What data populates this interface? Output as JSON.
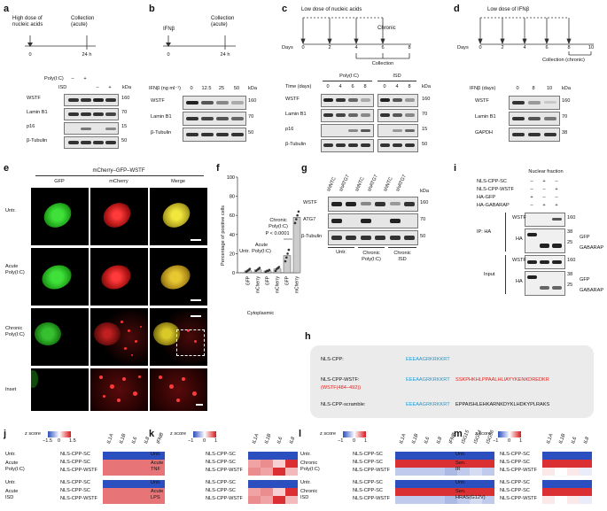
{
  "panels": {
    "a": {
      "label": "a",
      "timeline": {
        "start_label": "High dose of\nnucleic acids",
        "end_label": "Collection\n(acute)",
        "t0": "0",
        "t1": "24 h"
      },
      "conditions": [
        {
          "name": "Poly(I:C)",
          "values": [
            "–",
            "+",
            "",
            ""
          ]
        },
        {
          "name": "ISD",
          "values": [
            "",
            "",
            "–",
            "+"
          ]
        }
      ],
      "kda_header": "kDa",
      "rows": [
        {
          "name": "WSTF",
          "kda": "160"
        },
        {
          "name": "Lamin B1",
          "kda": "70"
        },
        {
          "name": "p16",
          "kda": "15"
        },
        {
          "name": "β-Tubulin",
          "kda": "50"
        }
      ]
    },
    "b": {
      "label": "b",
      "timeline": {
        "start_label": "IFNβ",
        "end_label": "Collection\n(acute)",
        "t0": "0",
        "t1": "24 h"
      },
      "dose_label": "IFNβ (ng ml⁻¹)",
      "doses": [
        "0",
        "12.5",
        "25",
        "50"
      ],
      "kda_header": "kDa",
      "rows": [
        {
          "name": "WSTF",
          "kda": "160"
        },
        {
          "name": "Lamin B1",
          "kda": "70"
        },
        {
          "name": "β-Tubulin",
          "kda": "50"
        }
      ]
    },
    "c": {
      "label": "c",
      "title": "Low dose of nucleic acids",
      "chronic": "Chronic",
      "days_label": "Days",
      "days": [
        "0",
        "2",
        "4",
        "6",
        "8"
      ],
      "collection": "Collection",
      "groups": [
        "Poly(I:C)",
        "ISD"
      ],
      "time_label": "Time (days)",
      "times": [
        "0",
        "4",
        "6",
        "8",
        "0",
        "4",
        "8"
      ],
      "kda_header": "kDa",
      "rows": [
        {
          "name": "WSTF",
          "kda": "160"
        },
        {
          "name": "Lamin B1",
          "kda": "70"
        },
        {
          "name": "p16",
          "kda": "15"
        },
        {
          "name": "β-Tubulin",
          "kda": "50"
        }
      ]
    },
    "d": {
      "label": "d",
      "title": "Low dose of IFNβ",
      "days_label": "Days",
      "days": [
        "0",
        "2",
        "4",
        "6",
        "8",
        "10"
      ],
      "collection": "Collection (chronic)",
      "ifn_days_label": "IFNβ (days)",
      "ifn_days": [
        "0",
        "8",
        "10"
      ],
      "kda_header": "kDa",
      "rows": [
        {
          "name": "WSTF",
          "kda": "160"
        },
        {
          "name": "Lamin B1",
          "kda": "70"
        },
        {
          "name": "GAPDH",
          "kda": "38"
        }
      ]
    },
    "e": {
      "label": "e",
      "title": "mCherry–GFP–WSTF",
      "columns": [
        "GFP",
        "mCherry",
        "Merge"
      ],
      "rows": [
        "Untr.",
        "Acute\nPoly(I:C)",
        "Chronic\nPoly(I:C)",
        "Inset"
      ]
    },
    "f": {
      "label": "f",
      "ylabel": "Percentage of positive cells",
      "yticks": [
        "0",
        "20",
        "40",
        "60",
        "80",
        "100"
      ],
      "groups": [
        "Untr.",
        "Acute\nPoly(I:C)",
        "Chronic\nPoly(I:C)"
      ],
      "bars": [
        "GFP",
        "mCherry",
        "GFP",
        "mCherry",
        "GFP",
        "mCherry"
      ],
      "xlabel": "Cytoplasmic",
      "pvalue": "P < 0.0001"
    },
    "g": {
      "label": "g",
      "lanes": [
        "shNTC",
        "shATG7",
        "shNTC",
        "shATG7",
        "shNTC",
        "shATG7"
      ],
      "groups": [
        "Untr.",
        "Chronic\nPoly(I:C)",
        "Chronic\nISD"
      ],
      "kda_header": "kDa",
      "rows": [
        {
          "name": "WSTF",
          "kda": "160"
        },
        {
          "name": "ATG7",
          "kda": "70"
        },
        {
          "name": "β-Tubulin",
          "kda": "50"
        }
      ]
    },
    "h": {
      "label": "h",
      "lines": [
        {
          "name": "NLS-CPP:",
          "seq_blue": "EEEAAGRKRKKRT",
          "seq_red": "",
          "seq_black": ""
        },
        {
          "name": "NLS-CPP-WSTF:",
          "sub": "(WSTF(484–492))",
          "seq_blue": "EEEAAGRKRKKRT",
          "seq_red": "SSKPHKHLPPAALHLIAYYKENKDREDKR",
          "seq_black": ""
        },
        {
          "name": "NLS-CPP-scramble:",
          "seq_blue": "EEEAAGRKRKKRT",
          "seq_red": "",
          "seq_black": "EPPAISHLEHKARNKDYKLHDKYPLRAKS"
        }
      ]
    },
    "i": {
      "label": "i",
      "title": "Nuclear fraction",
      "conditions": [
        {
          "name": "NLS-CPP-SC",
          "values": [
            "–",
            "+",
            "–"
          ]
        },
        {
          "name": "NLS-CPP-WSTF",
          "values": [
            "–",
            "–",
            "+"
          ]
        },
        {
          "name": "HA-GFP",
          "values": [
            "+",
            "–",
            "–"
          ]
        },
        {
          "name": "HA-GABARAP",
          "values": [
            "–",
            "+",
            "+"
          ]
        }
      ],
      "ip_label": "IP: HA",
      "input_label": "Input",
      "ip_rows": [
        {
          "name": "WSTF",
          "kda": [
            "160"
          ]
        },
        {
          "name": "HA",
          "kda": [
            "38",
            "25"
          ],
          "right": [
            "GFP",
            "GABARAP"
          ]
        }
      ],
      "input_rows": [
        {
          "name": "WSTF",
          "kda": [
            "160"
          ]
        },
        {
          "name": "HA",
          "kda": [
            "38",
            "25"
          ],
          "right": [
            "GFP",
            "GABARAP"
          ]
        }
      ]
    }
  },
  "heatmaps": {
    "j": {
      "label": "j",
      "zscore": "z score",
      "scale": [
        "−1.5",
        "0",
        "1.5"
      ],
      "genes": [
        "IL1A",
        "IL1B",
        "IL6",
        "IL8",
        "IFNB"
      ],
      "blocks": [
        {
          "group": "Acute\nPoly(I:C)",
          "rows": [
            "NLS-CPP-SC",
            "NLS-CPP-SC",
            "NLS-CPP-WSTF"
          ],
          "untr": "Untr."
        },
        {
          "group": "Acute\nISD",
          "rows": [
            "NLS-CPP-SC",
            "NLS-CPP-SC",
            "NLS-CPP-WSTF"
          ],
          "untr": "Untr."
        }
      ]
    },
    "k": {
      "label": "k",
      "zscore": "z score",
      "scale": [
        "−1",
        "0",
        "1"
      ],
      "genes": [
        "IL1A",
        "IL1B",
        "IL6",
        "IL8"
      ],
      "blocks": [
        {
          "group": "Acute\nTNF",
          "rows": [
            "NLS-CPP-SC",
            "NLS-CPP-SC",
            "NLS-CPP-WSTF"
          ],
          "untr": "Untr."
        },
        {
          "group": "Acute\nLPS",
          "rows": [
            "NLS-CPP-SC",
            "NLS-CPP-SC",
            "NLS-CPP-WSTF"
          ],
          "untr": "Untr."
        }
      ]
    },
    "l": {
      "label": "l",
      "zscore": "z score",
      "scale": [
        "−1",
        "0",
        "1"
      ],
      "genes": [
        "IL1A",
        "IL1B",
        "IL6",
        "IL8",
        "IFNB",
        "ISG15",
        "ISG54",
        "ISG56"
      ],
      "blocks": [
        {
          "group": "Chronic\nPoly(I:C)",
          "rows": [
            "NLS-CPP-SC",
            "NLS-CPP-SC",
            "NLS-CPP-WSTF"
          ],
          "untr": "Untr."
        },
        {
          "group": "Chronic\nISD",
          "rows": [
            "NLS-CPP-SC",
            "NLS-CPP-SC",
            "NLS-CPP-WSTF"
          ],
          "untr": "Untr."
        }
      ]
    },
    "m": {
      "label": "m",
      "zscore": "z score",
      "scale": [
        "−1",
        "0",
        "1"
      ],
      "genes": [
        "IL1A",
        "IL1B",
        "IL6",
        "IL8"
      ],
      "blocks": [
        {
          "group": "Sen.\nIR",
          "rows": [
            "NLS-CPP-SC",
            "NLS-CPP-SC",
            "NLS-CPP-WSTF"
          ],
          "untr": "Untr."
        },
        {
          "group": "Sen.\nHRAS(G12V)",
          "rows": [
            "NLS-CPP-SC",
            "NLS-CPP-SC",
            "NLS-CPP-WSTF"
          ],
          "untr": "Untr."
        }
      ]
    }
  },
  "chart_data": {
    "type": "bar",
    "title": "",
    "ylabel": "Percentage of positive cells",
    "xlabel": "Cytoplasmic",
    "ylim": [
      0,
      100
    ],
    "categories": [
      "Untr. GFP",
      "Untr. mCherry",
      "Acute Poly(I:C) GFP",
      "Acute Poly(I:C) mCherry",
      "Chronic Poly(I:C) GFP",
      "Chronic Poly(I:C) mCherry"
    ],
    "values": [
      2,
      3,
      2,
      4,
      18,
      58
    ],
    "points": [
      [
        1,
        2,
        3,
        4
      ],
      [
        2,
        3,
        4,
        5
      ],
      [
        1,
        2,
        2,
        3
      ],
      [
        2,
        4,
        5,
        6
      ],
      [
        12,
        16,
        20,
        24
      ],
      [
        52,
        56,
        60,
        64
      ]
    ],
    "annotation": "P < 0.0001"
  },
  "colors": {
    "red": "#d7191c",
    "blue": "#2c4fbf",
    "cyan": "#1a9bd7",
    "seq_red": "#e0201b"
  }
}
